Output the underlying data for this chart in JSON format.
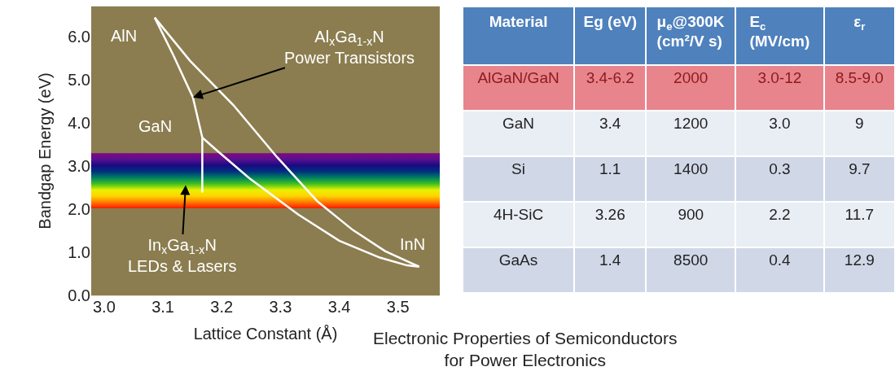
{
  "chart_data": [
    {
      "type": "line",
      "xlabel": "Lattice Constant (Å)",
      "ylabel": "Bandgap Energy (eV)",
      "xlim": [
        2.978,
        3.571
      ],
      "ylim": [
        0,
        6.7
      ],
      "xticks": [
        {
          "value": 3.0,
          "label": "3.0"
        },
        {
          "value": 3.1,
          "label": "3.1"
        },
        {
          "value": 3.2,
          "label": "3.2"
        },
        {
          "value": 3.3,
          "label": "3.3"
        },
        {
          "value": 3.4,
          "label": "3.4"
        },
        {
          "value": 3.5,
          "label": "3.5"
        }
      ],
      "yticks": [
        {
          "value": 0,
          "label": "0.0"
        },
        {
          "value": 1,
          "label": "1.0"
        },
        {
          "value": 2,
          "label": "2.0"
        },
        {
          "value": 3,
          "label": "3.0"
        },
        {
          "value": 4,
          "label": "4.0"
        },
        {
          "value": 5,
          "label": "5.0"
        },
        {
          "value": 6,
          "label": "6.0"
        }
      ],
      "grid": false,
      "marker": "none",
      "line_style": "solid",
      "bands": [
        {
          "axis": "y",
          "from": 2.02,
          "to": 3.3
        }
      ],
      "series": [
        {
          "color": "#ffffff",
          "x": [
            3.086,
            3.118,
            3.151,
            3.167,
            3.167
          ],
          "values": [
            6.44,
            5.56,
            4.59,
            3.66,
            2.39
          ]
        },
        {
          "color": "#ffffff",
          "x": [
            3.086,
            3.146,
            3.22,
            3.294,
            3.363,
            3.423,
            3.478,
            3.536
          ],
          "values": [
            6.44,
            5.44,
            4.41,
            3.21,
            2.18,
            1.52,
            1.03,
            0.67
          ]
        },
        {
          "color": "#ffffff",
          "x": [
            3.167,
            3.192,
            3.247,
            3.33,
            3.4,
            3.469,
            3.515,
            3.536
          ],
          "values": [
            3.66,
            3.36,
            2.72,
            1.88,
            1.27,
            0.88,
            0.7,
            0.67
          ]
        }
      ],
      "annotations": [
        {
          "text": "AlN",
          "x": 3.086,
          "y": 6.44
        },
        {
          "text": "GaN",
          "x": 3.167,
          "y": 3.66
        },
        {
          "text": "InN",
          "x": 3.536,
          "y": 0.67
        },
        {
          "text": "Al$_{x}$Ga$_{1-x}$N\nPower Transistors",
          "x": 3.151,
          "y": 4.59
        },
        "In$_{x}$Ga$_{1-x}$N\nLEDs & Lasers"
      ]
    },
    {
      "type": "other",
      "title": "Electronic Properties of Semiconductors\nfor Power Electronics",
      "categories": [
        "Material",
        "Eg (eV)",
        "μ$_{e}$@300K\n(cm²/V s)",
        "E$_{c}$\n(MV/cm)",
        "ε$_{r}$"
      ],
      "cell_labels": [
        [
          "AlGaN/GaN",
          "3.4-6.2",
          "2000",
          "3.0-12",
          "8.5-9.0"
        ],
        [
          "GaN",
          "3.4",
          "1200",
          "3.0",
          "9"
        ],
        [
          "Si",
          "1.1",
          "1400",
          "0.3",
          "9.7"
        ],
        [
          "4H-SiC",
          "3.26",
          "900",
          "2.2",
          "11.7"
        ],
        [
          "GaAs",
          "1.4",
          "8500",
          "0.4",
          "12.9"
        ]
      ]
    }
  ]
}
